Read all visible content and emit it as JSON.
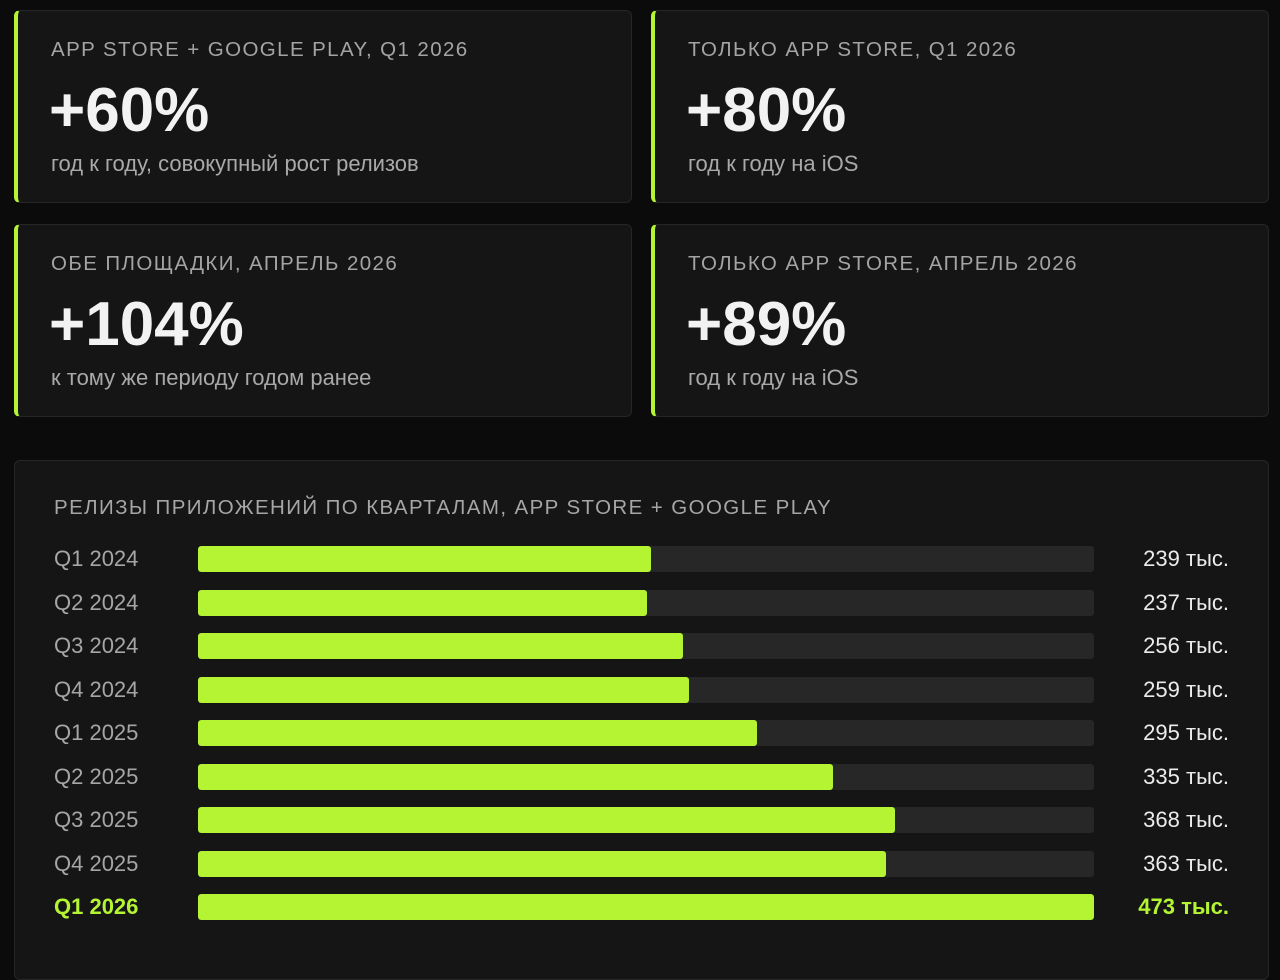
{
  "cards": [
    {
      "label": "APP STORE + GOOGLE PLAY, Q1 2026",
      "value": "+60%",
      "desc": "год к году, совокупный рост релизов"
    },
    {
      "label": "ТОЛЬКО APP STORE, Q1 2026",
      "value": "+80%",
      "desc": "год к году на iOS"
    },
    {
      "label": "ОБЕ ПЛОЩАДКИ, АПРЕЛЬ 2026",
      "value": "+104%",
      "desc": "к тому же периоду годом ранее"
    },
    {
      "label": "ТОЛЬКО APP STORE, АПРЕЛЬ 2026",
      "value": "+89%",
      "desc": "год к году на iOS"
    }
  ],
  "colors": {
    "accent": "#b4f433",
    "track": "#272727",
    "panel": "#151515"
  },
  "chart_data": {
    "type": "bar",
    "orientation": "horizontal",
    "title": "РЕЛИЗЫ ПРИЛОЖЕНИЙ ПО КВАРТАЛАМ, APP STORE + GOOGLE PLAY",
    "categories": [
      "Q1 2024",
      "Q2 2024",
      "Q3 2024",
      "Q4 2024",
      "Q1 2025",
      "Q2 2025",
      "Q3 2025",
      "Q4 2025",
      "Q1 2026"
    ],
    "values": [
      239,
      237,
      256,
      259,
      295,
      335,
      368,
      363,
      473
    ],
    "value_labels": [
      "239 тыс.",
      "237 тыс.",
      "256 тыс.",
      "259 тыс.",
      "295 тыс.",
      "335 тыс.",
      "368 тыс.",
      "363 тыс.",
      "473 тыс."
    ],
    "unit": "тыс.",
    "xlim": [
      0,
      473
    ],
    "highlight_index": 8,
    "grid": false,
    "legend": false
  }
}
